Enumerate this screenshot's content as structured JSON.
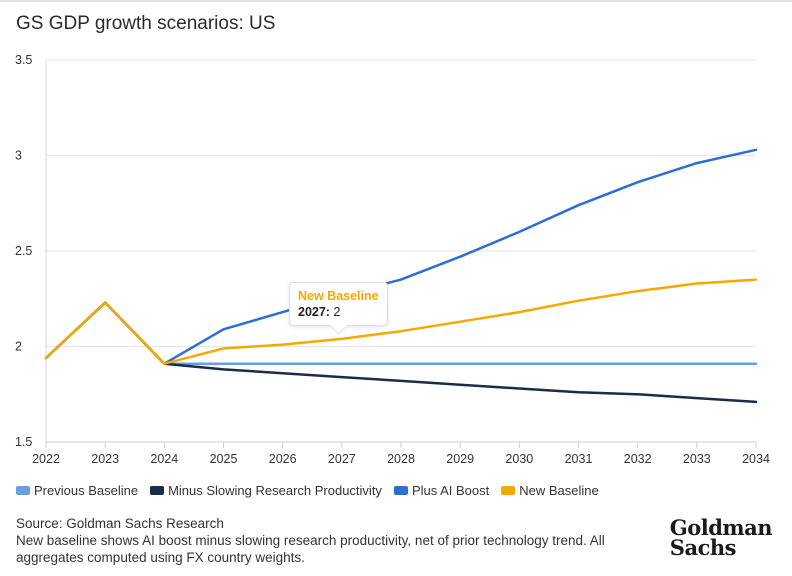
{
  "title": "GS GDP growth scenarios: US",
  "chart_data": {
    "type": "line",
    "title": "GS GDP growth scenarios: US",
    "xlabel": "",
    "ylabel": "",
    "x": [
      2022,
      2023,
      2024,
      2025,
      2026,
      2027,
      2028,
      2029,
      2030,
      2031,
      2032,
      2033,
      2034
    ],
    "xlim": [
      2022,
      2034
    ],
    "ylim": [
      1.5,
      3.5
    ],
    "yticks": [
      1.5,
      2,
      2.5,
      3,
      3.5
    ],
    "ytick_labels": [
      "1.5",
      "2",
      "2.5",
      "3",
      "3.5"
    ],
    "grid": true,
    "legend_position": "bottom-left",
    "series": [
      {
        "name": "Previous Baseline",
        "color": "#6c9de0",
        "values": [
          1.94,
          2.23,
          1.91,
          1.91,
          1.91,
          1.91,
          1.91,
          1.91,
          1.91,
          1.91,
          1.91,
          1.91,
          1.91
        ]
      },
      {
        "name": "Minus Slowing Research Productivity",
        "color": "#192c48",
        "values": [
          1.94,
          2.23,
          1.91,
          1.88,
          1.86,
          1.84,
          1.82,
          1.8,
          1.78,
          1.76,
          1.75,
          1.73,
          1.71
        ]
      },
      {
        "name": "Plus AI Boost",
        "color": "#2d6fd1",
        "values": [
          1.94,
          2.23,
          1.91,
          2.09,
          2.18,
          2.27,
          2.35,
          2.47,
          2.6,
          2.74,
          2.86,
          2.96,
          3.03
        ]
      },
      {
        "name": "New Baseline",
        "color": "#f5a800",
        "values": [
          1.94,
          2.23,
          1.91,
          1.99,
          2.01,
          2.04,
          2.08,
          2.13,
          2.18,
          2.24,
          2.29,
          2.33,
          2.35
        ]
      }
    ],
    "tooltip": {
      "series": "New Baseline",
      "label": "2027:",
      "value": "2"
    }
  },
  "footer": {
    "source": "Source: Goldman Sachs Research",
    "note": "New baseline shows AI boost minus slowing research productivity, net of prior technology trend. All aggregates computed using FX country weights."
  },
  "logo": {
    "line1": "Goldman",
    "line2": "Sachs"
  }
}
